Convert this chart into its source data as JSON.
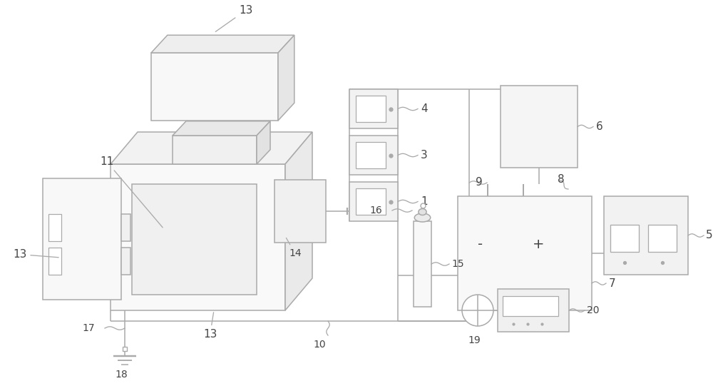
{
  "bg": "#ffffff",
  "lc": "#aaaaaa",
  "lw": 1.1,
  "lblc": "#444444",
  "lfs": 11,
  "fig_w": 10.0,
  "fig_h": 5.41
}
